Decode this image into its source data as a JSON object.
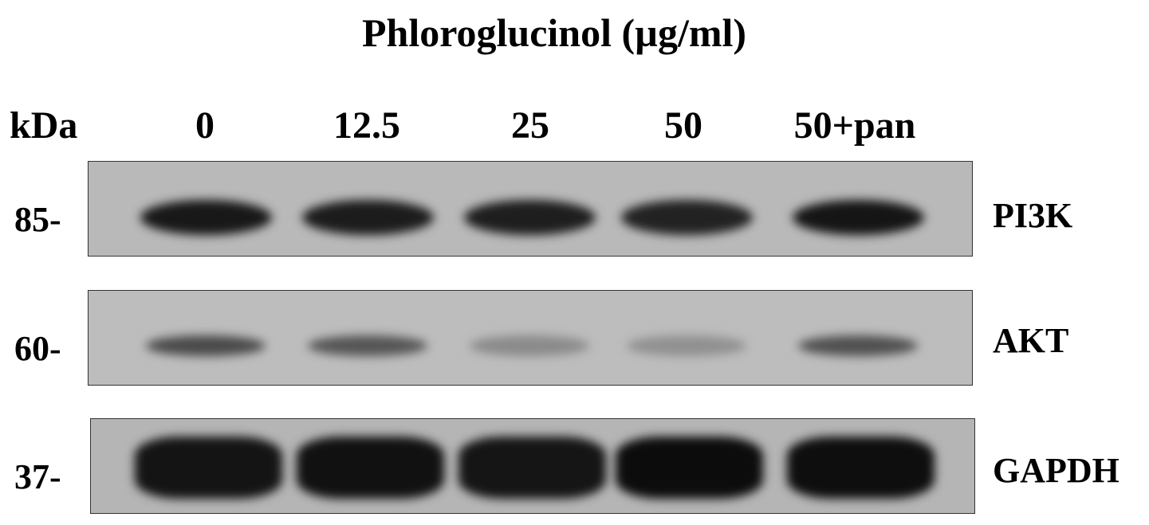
{
  "title": "Phloroglucinol (µg/ml)",
  "kda_label": "kDa",
  "lanes": [
    "0",
    "12.5",
    "25",
    "50",
    "50+pan"
  ],
  "panels": [
    {
      "protein": "PI3K",
      "marker": "85-"
    },
    {
      "protein": "AKT",
      "marker": "60-"
    },
    {
      "protein": "GAPDH",
      "marker": "37-"
    }
  ]
}
